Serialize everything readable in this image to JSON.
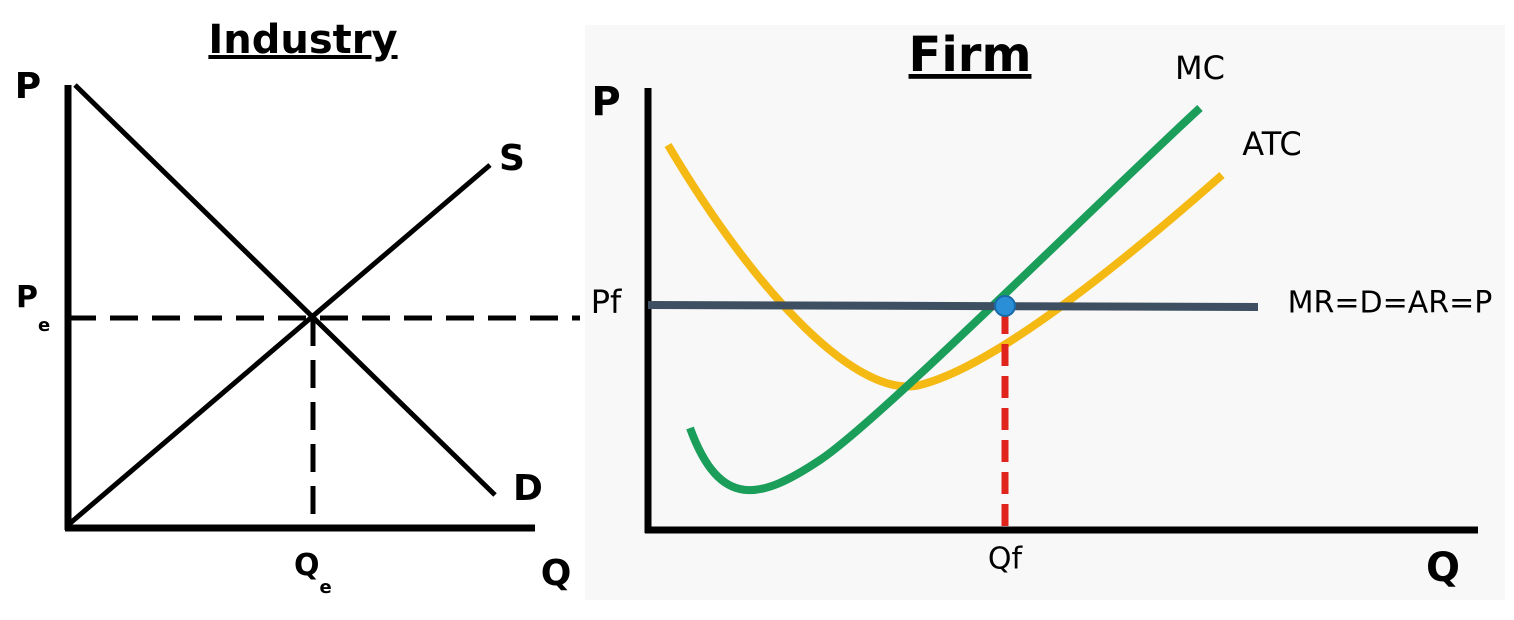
{
  "industry": {
    "title": "Industry",
    "y_axis": "P",
    "x_axis": "Q",
    "supply": "S",
    "demand": "D",
    "price": {
      "main": "P",
      "sub": "e"
    },
    "quantity": {
      "main": "Q",
      "sub": "e"
    }
  },
  "firm": {
    "title": "Firm",
    "y_axis": "P",
    "x_axis": "Q",
    "mc": "MC",
    "atc": "ATC",
    "price": "Pf",
    "quantity": "Qf",
    "mr": "MR=D=AR=P"
  }
}
